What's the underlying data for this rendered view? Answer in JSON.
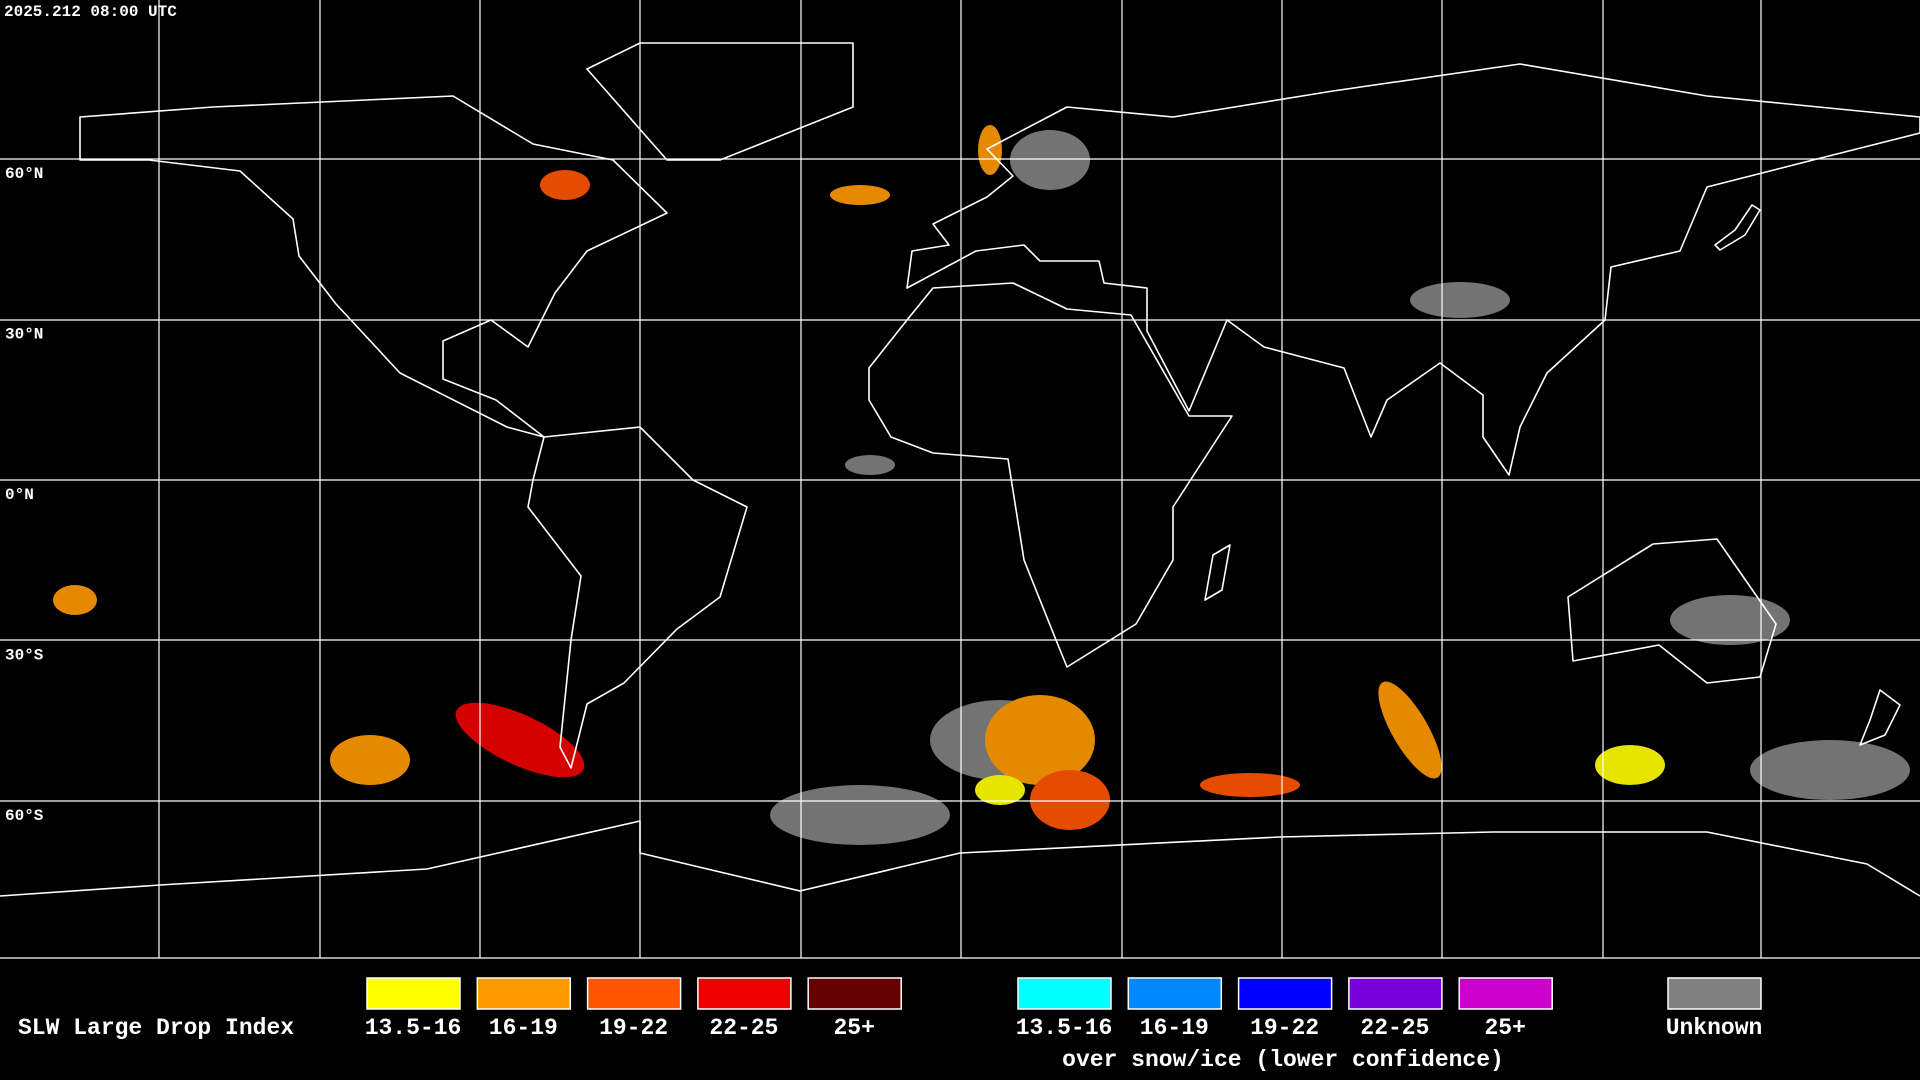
{
  "timestamp": "2025.212 08:00 UTC",
  "latitude_labels": [
    "60°N",
    "30°N",
    "0°N",
    "30°S",
    "60°S"
  ],
  "legend": {
    "title": "SLW Large Drop Index",
    "items": [
      {
        "label": "13.5-16",
        "color": "#ffff00"
      },
      {
        "label": "16-19",
        "color": "#ff9900"
      },
      {
        "label": "19-22",
        "color": "#ff5500"
      },
      {
        "label": "22-25",
        "color": "#ee0000"
      },
      {
        "label": "25+",
        "color": "#660000"
      }
    ],
    "snow_ice_items": [
      {
        "label": "13.5-16",
        "color": "#00ffff"
      },
      {
        "label": "16-19",
        "color": "#0088ff"
      },
      {
        "label": "19-22",
        "color": "#0000ff"
      },
      {
        "label": "22-25",
        "color": "#7700dd"
      },
      {
        "label": "25+",
        "color": "#cc00cc"
      }
    ],
    "snow_ice_caption": "over snow/ice (lower confidence)",
    "unknown": {
      "label": "Unknown",
      "color": "#808080"
    }
  }
}
